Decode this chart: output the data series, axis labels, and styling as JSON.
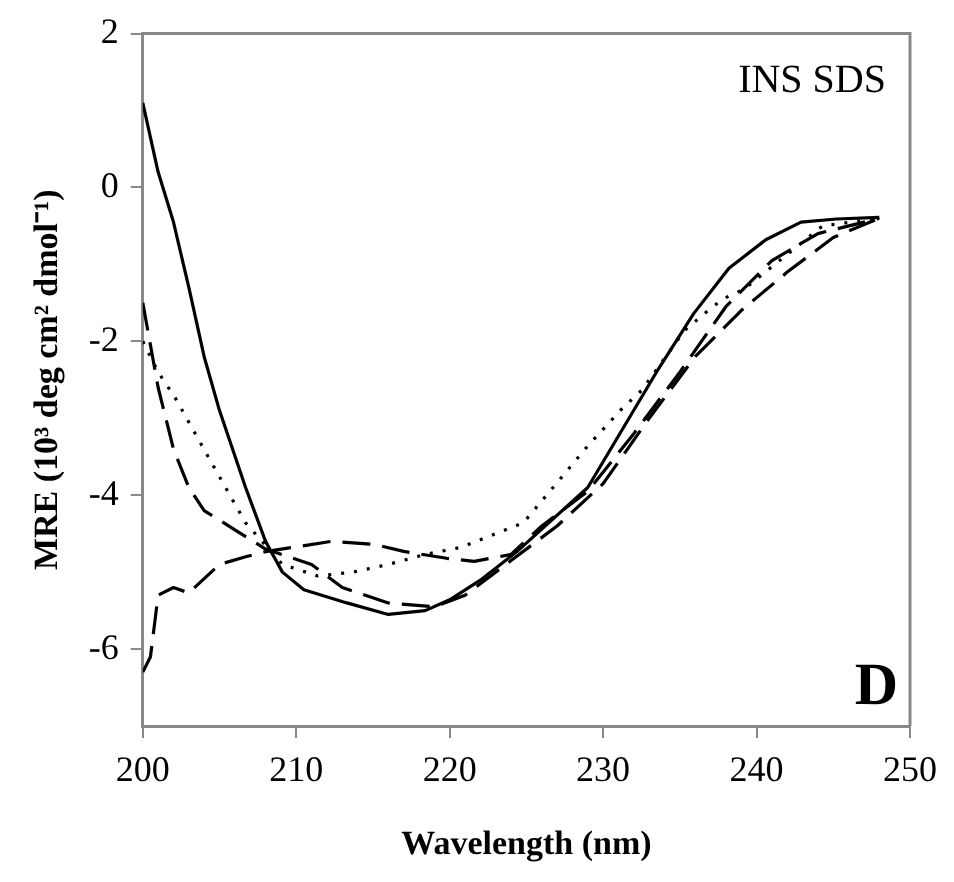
{
  "chart_data": {
    "type": "line",
    "xlabel": "Wavelength (nm)",
    "ylabel": "MRE (10³ deg cm² dmol⁻¹)",
    "annotations": [
      "INS SDS",
      "D"
    ],
    "xlim": [
      200,
      250
    ],
    "xticks": [
      200,
      210,
      220,
      230,
      240,
      250
    ],
    "ylim": [
      -7,
      2
    ],
    "yticks": [
      -6,
      -4,
      -2,
      0,
      2
    ],
    "grid": false,
    "legend": false,
    "marker": "none",
    "series": [
      {
        "color": "#000000",
        "line_style": "solid",
        "x": [
          200,
          201,
          202,
          203,
          204,
          205,
          206.7,
          208,
          209.1,
          210.5,
          213.3,
          216,
          218.4,
          220,
          222.1,
          224.4,
          229,
          233.6,
          235.9,
          238.2,
          240.6,
          242.9,
          245.2,
          248
        ],
        "values": [
          1.1,
          0.2,
          -0.45,
          -1.3,
          -2.2,
          -2.9,
          -3.9,
          -4.6,
          -5.0,
          -5.23,
          -5.4,
          -5.55,
          -5.5,
          -5.36,
          -5.09,
          -4.73,
          -3.9,
          -2.36,
          -1.64,
          -1.05,
          -0.68,
          -0.45,
          -0.41,
          -0.39
        ]
      },
      {
        "color": "#000000",
        "line_style": "dotted",
        "x": [
          200,
          201,
          202.1,
          204.4,
          206.7,
          209.1,
          211.4,
          213.7,
          216,
          218.4,
          220.7,
          223,
          224.8,
          226.9,
          229,
          231.3,
          232.5,
          235.3,
          236.6,
          237.8,
          239.2,
          241.5,
          244.3,
          248
        ],
        "values": [
          -2.0,
          -2.4,
          -2.73,
          -3.55,
          -4.36,
          -4.9,
          -5.05,
          -5.0,
          -4.9,
          -4.77,
          -4.68,
          -4.5,
          -4.36,
          -3.86,
          -3.36,
          -2.86,
          -2.64,
          -1.86,
          -1.64,
          -1.45,
          -1.32,
          -0.95,
          -0.5,
          -0.4
        ]
      },
      {
        "color": "#000000",
        "line_style": "dashed",
        "x": [
          200,
          200.5,
          201,
          202,
          203,
          205,
          206.7,
          208.1,
          212.3,
          215.1,
          217,
          219.8,
          221.6,
          224,
          226,
          229,
          232,
          235,
          238,
          241,
          244,
          248
        ],
        "values": [
          -6.3,
          -6.1,
          -5.3,
          -5.2,
          -5.27,
          -4.9,
          -4.8,
          -4.73,
          -4.6,
          -4.64,
          -4.73,
          -4.82,
          -4.86,
          -4.77,
          -4.4,
          -3.95,
          -3.2,
          -2.4,
          -1.55,
          -0.95,
          -0.6,
          -0.4
        ]
      },
      {
        "color": "#000000",
        "line_style": "dashed",
        "x": [
          200,
          201,
          202,
          203,
          204,
          206,
          208,
          211,
          213,
          216,
          219,
          221,
          224,
          227,
          230,
          233,
          236,
          239,
          242,
          245,
          248
        ],
        "values": [
          -1.5,
          -2.6,
          -3.4,
          -3.9,
          -4.2,
          -4.45,
          -4.7,
          -4.9,
          -5.2,
          -5.4,
          -5.45,
          -5.3,
          -4.85,
          -4.4,
          -3.85,
          -3.0,
          -2.2,
          -1.6,
          -1.1,
          -0.65,
          -0.4
        ]
      }
    ]
  }
}
